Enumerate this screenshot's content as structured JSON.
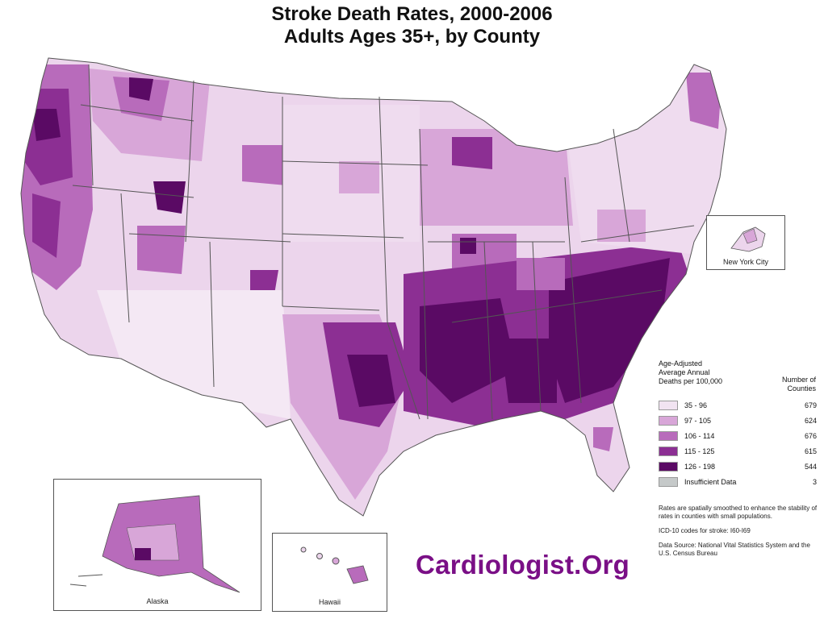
{
  "title": {
    "line1": "Stroke Death Rates, 2000-2006",
    "line2": "Adults Ages 35+, by County"
  },
  "legend": {
    "title_lines": [
      "Age-Adjusted",
      "Average Annual",
      "Deaths per 100,000"
    ],
    "count_header_lines": [
      "Number of",
      "Counties"
    ],
    "classes": [
      {
        "range": "35 -  96",
        "count": "679",
        "color": "#f1e3f1"
      },
      {
        "range": "97 - 105",
        "count": "624",
        "color": "#d8a6d8"
      },
      {
        "range": "106 - 114",
        "count": "676",
        "color": "#b86bbb"
      },
      {
        "range": "115 - 125",
        "count": "615",
        "color": "#8c2f93"
      },
      {
        "range": "126 - 198",
        "count": "544",
        "color": "#5a0a64"
      },
      {
        "range": "Insufficient Data",
        "count": "3",
        "color": "#c5c9c9"
      }
    ]
  },
  "insets": {
    "nyc": "New York City",
    "alaska": "Alaska",
    "hawaii": "Hawaii"
  },
  "notes": {
    "smoothing": "Rates are spatially smoothed to enhance the stability of rates in counties with small populations.",
    "icd": "ICD-10 codes for stroke: I60-I69",
    "source": "Data Source: National Vital Statistics System and the U.S. Census Bureau"
  },
  "watermark": "Cardiologist.Org",
  "colors": {
    "border": "#555555",
    "water": "#ffffff"
  }
}
